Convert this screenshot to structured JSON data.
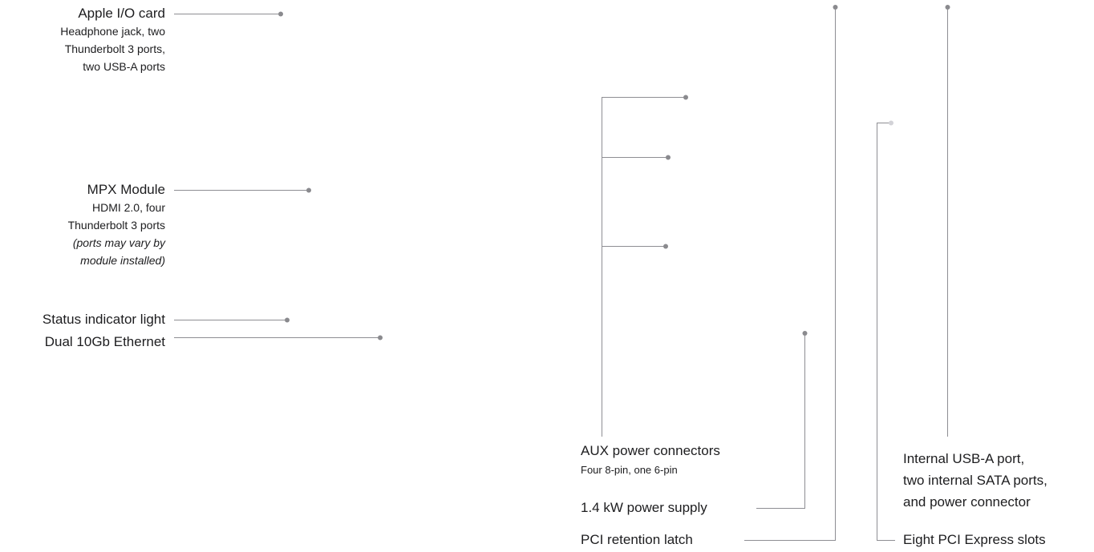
{
  "callouts": {
    "apple_io_card": {
      "title": "Apple I/O card",
      "sub_1": "Headphone jack, two",
      "sub_2": "Thunderbolt 3 ports,",
      "sub_3": "two USB-A ports"
    },
    "mpx_module": {
      "title": "MPX Module",
      "sub_1": "HDMI 2.0, four",
      "sub_2": "Thunderbolt 3 ports",
      "note_1": "(ports may vary by",
      "note_2": "module installed)"
    },
    "status_indicator": {
      "title": "Status indicator light"
    },
    "dual_ethernet": {
      "title": "Dual 10Gb Ethernet"
    },
    "aux_power": {
      "title": "AUX power connectors",
      "sub_1": "Four 8-pin, one 6-pin"
    },
    "power_supply": {
      "title": "1.4 kW power supply"
    },
    "pci_latch": {
      "title": "PCI retention latch"
    },
    "internal_ports": {
      "line_1": "Internal USB-A port,",
      "line_2": "two internal SATA ports,",
      "line_3": "and power connector"
    },
    "pci_slots": {
      "title": "Eight PCI Express slots"
    }
  },
  "colors": {
    "text": "#1d1d1f",
    "leader_line": "#8e8e93",
    "leader_dot": "#8a8a8e",
    "leader_dot_faint": "#d2d2d7"
  }
}
